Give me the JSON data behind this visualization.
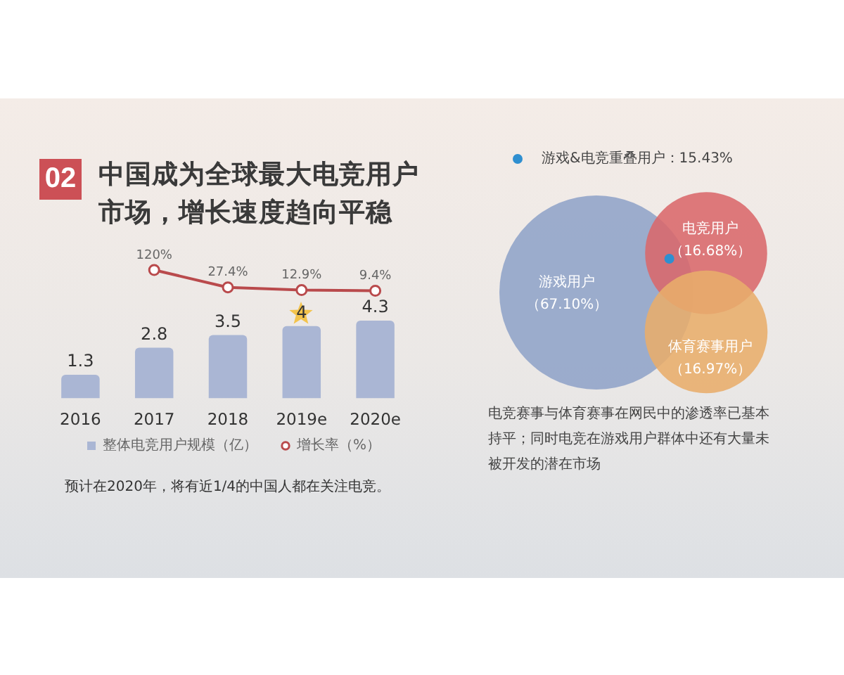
{
  "chart_data": [
    {
      "type": "line",
      "title": "中国成为全球最大电竞用户市场，增长速度趋向平稳",
      "categories": [
        null,
        null,
        null,
        null,
        null
      ],
      "series": [
        {
          "name": "增长率（%）",
          "color": "#b94a4c",
          "values": [
            null,
            120,
            27.4,
            12.9,
            9.4
          ],
          "value_labels": [
            null,
            "120%",
            "27.4%",
            "12.9%",
            "9.4%"
          ]
        }
      ],
      "tick_labels": false,
      "grid": false,
      "legend": "bottom",
      "marker": "circle",
      "annotations": [
        "02"
      ]
    },
    {
      "type": "bar",
      "categories": [
        "2016",
        "2017",
        "2018",
        "2019e",
        "2020e"
      ],
      "series": [
        {
          "name": "整体电竞用户规模（亿）",
          "color": "#aab6d4",
          "values": [
            1.3,
            2.8,
            3.5,
            4,
            4.3
          ],
          "value_labels": [
            "1.3",
            "2.8",
            "3.5",
            "4",
            "4.3"
          ]
        }
      ],
      "tick_labels": "x",
      "grid": false,
      "legend": "bottom",
      "annotations": [
        "预计在2020年，将有近1/4的中国人都在关注电竞。"
      ]
    },
    {
      "type": "other",
      "categories": [
        "游戏用户",
        "电竞用户",
        "体育赛事用户"
      ],
      "values": [
        67.1,
        16.68,
        16.97
      ],
      "colors": [
        "#8fa3c8",
        "#d9686b",
        "#e8ad6b"
      ],
      "value_labels": [
        "（67.10%）",
        "（16.68%）",
        "（16.97%）"
      ],
      "annotations": [
        "游戏&电竞重叠用户：15.43%",
        "电竞赛事与体育赛事在网民中的渗透率已基本持平；同时电竞在游戏用户群体中还有大量未被开发的潜在市场"
      ]
    }
  ]
}
